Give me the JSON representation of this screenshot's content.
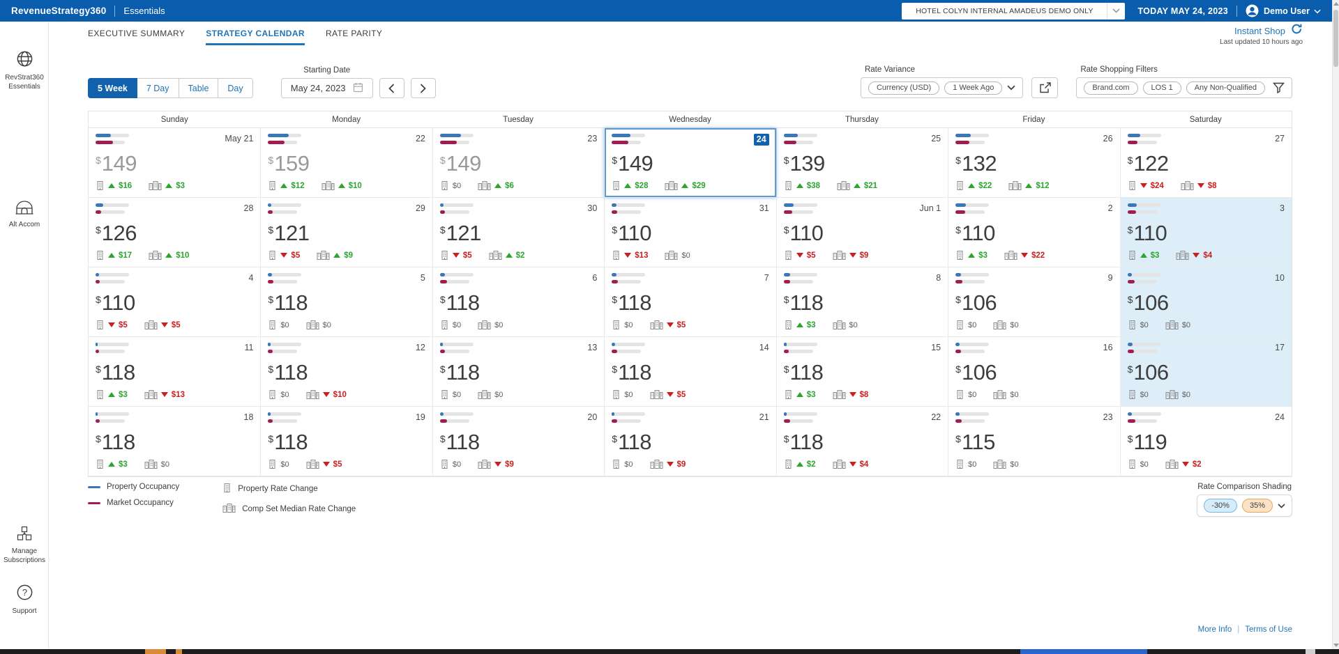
{
  "topbar": {
    "brand": "RevenueStrategy360",
    "product": "Essentials",
    "hotel": "HOTEL COLYN INTERNAL AMADEUS DEMO ONLY",
    "today": "TODAY MAY 24, 2023",
    "user": "Demo User"
  },
  "sidebar": {
    "items": [
      {
        "label": "RevStrat360 Essentials",
        "icon": "globe-icon"
      },
      {
        "label": "Alt Accom",
        "icon": "arch-icon"
      },
      {
        "label": "Manage Subscriptions",
        "icon": "cubes-icon"
      },
      {
        "label": "Support",
        "icon": "question-icon"
      }
    ]
  },
  "tabs": [
    {
      "label": "EXECUTIVE SUMMARY",
      "active": false
    },
    {
      "label": "STRATEGY CALENDAR",
      "active": true
    },
    {
      "label": "RATE PARITY",
      "active": false
    }
  ],
  "instant_shop": {
    "label": "Instant Shop",
    "last_updated": "Last updated 10 hours ago"
  },
  "toolbar": {
    "view_buttons": [
      "5 Week",
      "7 Day",
      "Table",
      "Day"
    ],
    "active_view": "5 Week",
    "starting_date_label": "Starting Date",
    "starting_date": "May 24, 2023",
    "rate_variance_label": "Rate Variance",
    "rate_variance_pills": [
      "Currency (USD)",
      "1 Week Ago"
    ],
    "rate_shopping_label": "Rate Shopping Filters",
    "rate_shopping_pills": [
      "Brand.com",
      "LOS 1",
      "Any Non-Qualified"
    ]
  },
  "calendar": {
    "day_headers": [
      "Sunday",
      "Monday",
      "Tuesday",
      "Wednesday",
      "Thursday",
      "Friday",
      "Saturday"
    ],
    "cells": [
      {
        "d": "May 21",
        "p": "149",
        "past": true,
        "op": 45,
        "om": 52,
        "pc": {
          "dir": "up",
          "v": "$16"
        },
        "cc": {
          "dir": "up",
          "v": "$3"
        }
      },
      {
        "d": "22",
        "p": "159",
        "past": true,
        "op": 62,
        "om": 50,
        "pc": {
          "dir": "up",
          "v": "$12"
        },
        "cc": {
          "dir": "up",
          "v": "$10"
        }
      },
      {
        "d": "23",
        "p": "149",
        "past": true,
        "op": 62,
        "om": 50,
        "pc": {
          "dir": "zero",
          "v": "$0"
        },
        "cc": {
          "dir": "up",
          "v": "$6"
        }
      },
      {
        "d": "24",
        "p": "149",
        "sel": true,
        "op": 55,
        "om": 50,
        "pc": {
          "dir": "up",
          "v": "$28"
        },
        "cc": {
          "dir": "up",
          "v": "$29"
        }
      },
      {
        "d": "25",
        "p": "139",
        "op": 42,
        "om": 38,
        "pc": {
          "dir": "up",
          "v": "$38"
        },
        "cc": {
          "dir": "up",
          "v": "$21"
        }
      },
      {
        "d": "26",
        "p": "132",
        "op": 45,
        "om": 42,
        "pc": {
          "dir": "up",
          "v": "$22"
        },
        "cc": {
          "dir": "up",
          "v": "$12"
        }
      },
      {
        "d": "27",
        "p": "122",
        "op": 38,
        "om": 30,
        "pc": {
          "dir": "down",
          "v": "$24"
        },
        "cc": {
          "dir": "down",
          "v": "$8"
        }
      },
      {
        "d": "28",
        "p": "126",
        "op": 22,
        "om": 16,
        "pc": {
          "dir": "up",
          "v": "$17"
        },
        "cc": {
          "dir": "up",
          "v": "$10"
        }
      },
      {
        "d": "29",
        "p": "121",
        "op": 10,
        "om": 14,
        "pc": {
          "dir": "down",
          "v": "$5"
        },
        "cc": {
          "dir": "up",
          "v": "$9"
        }
      },
      {
        "d": "30",
        "p": "121",
        "op": 10,
        "om": 16,
        "pc": {
          "dir": "down",
          "v": "$5"
        },
        "cc": {
          "dir": "up",
          "v": "$2"
        }
      },
      {
        "d": "31",
        "p": "110",
        "op": 14,
        "om": 16,
        "pc": {
          "dir": "down",
          "v": "$13"
        },
        "cc": {
          "dir": "zero",
          "v": "$0"
        }
      },
      {
        "d": "Jun 1",
        "p": "110",
        "op": 30,
        "om": 25,
        "pc": {
          "dir": "down",
          "v": "$5"
        },
        "cc": {
          "dir": "down",
          "v": "$9"
        }
      },
      {
        "d": "2",
        "p": "110",
        "op": 30,
        "om": 28,
        "pc": {
          "dir": "up",
          "v": "$3"
        },
        "cc": {
          "dir": "down",
          "v": "$22"
        }
      },
      {
        "d": "3",
        "p": "110",
        "sh": true,
        "op": 28,
        "om": 25,
        "pc": {
          "dir": "up",
          "v": "$3"
        },
        "cc": {
          "dir": "down",
          "v": "$4"
        }
      },
      {
        "d": "4",
        "p": "110",
        "op": 10,
        "om": 12,
        "pc": {
          "dir": "down",
          "v": "$5"
        },
        "cc": {
          "dir": "down",
          "v": "$5"
        }
      },
      {
        "d": "5",
        "p": "118",
        "op": 12,
        "om": 16,
        "pc": {
          "dir": "zero",
          "v": "$0"
        },
        "cc": {
          "dir": "zero",
          "v": "$0"
        }
      },
      {
        "d": "6",
        "p": "118",
        "op": 14,
        "om": 20,
        "pc": {
          "dir": "zero",
          "v": "$0"
        },
        "cc": {
          "dir": "zero",
          "v": "$0"
        }
      },
      {
        "d": "7",
        "p": "118",
        "op": 14,
        "om": 18,
        "pc": {
          "dir": "zero",
          "v": "$0"
        },
        "cc": {
          "dir": "down",
          "v": "$5"
        }
      },
      {
        "d": "8",
        "p": "118",
        "op": 20,
        "om": 18,
        "pc": {
          "dir": "up",
          "v": "$3"
        },
        "cc": {
          "dir": "zero",
          "v": "$0"
        }
      },
      {
        "d": "9",
        "p": "106",
        "op": 16,
        "om": 20,
        "pc": {
          "dir": "zero",
          "v": "$0"
        },
        "cc": {
          "dir": "zero",
          "v": "$0"
        }
      },
      {
        "d": "10",
        "p": "106",
        "sh": true,
        "op": 14,
        "om": 22,
        "pc": {
          "dir": "zero",
          "v": "$0"
        },
        "cc": {
          "dir": "zero",
          "v": "$0"
        }
      },
      {
        "d": "11",
        "p": "118",
        "op": 6,
        "om": 10,
        "pc": {
          "dir": "up",
          "v": "$3"
        },
        "cc": {
          "dir": "down",
          "v": "$13"
        }
      },
      {
        "d": "12",
        "p": "118",
        "op": 8,
        "om": 14,
        "pc": {
          "dir": "zero",
          "v": "$0"
        },
        "cc": {
          "dir": "down",
          "v": "$10"
        }
      },
      {
        "d": "13",
        "p": "118",
        "op": 8,
        "om": 16,
        "pc": {
          "dir": "zero",
          "v": "$0"
        },
        "cc": {
          "dir": "zero",
          "v": "$0"
        }
      },
      {
        "d": "14",
        "p": "118",
        "op": 10,
        "om": 16,
        "pc": {
          "dir": "zero",
          "v": "$0"
        },
        "cc": {
          "dir": "down",
          "v": "$5"
        }
      },
      {
        "d": "15",
        "p": "118",
        "op": 8,
        "om": 16,
        "pc": {
          "dir": "up",
          "v": "$3"
        },
        "cc": {
          "dir": "down",
          "v": "$8"
        }
      },
      {
        "d": "16",
        "p": "106",
        "op": 12,
        "om": 16,
        "pc": {
          "dir": "zero",
          "v": "$0"
        },
        "cc": {
          "dir": "zero",
          "v": "$0"
        }
      },
      {
        "d": "17",
        "p": "106",
        "sh": true,
        "op": 16,
        "om": 20,
        "pc": {
          "dir": "zero",
          "v": "$0"
        },
        "cc": {
          "dir": "zero",
          "v": "$0"
        }
      },
      {
        "d": "18",
        "p": "118",
        "op": 6,
        "om": 12,
        "pc": {
          "dir": "up",
          "v": "$3"
        },
        "cc": {
          "dir": "zero",
          "v": "$0"
        }
      },
      {
        "d": "19",
        "p": "118",
        "op": 8,
        "om": 14,
        "pc": {
          "dir": "zero",
          "v": "$0"
        },
        "cc": {
          "dir": "down",
          "v": "$5"
        }
      },
      {
        "d": "20",
        "p": "118",
        "op": 10,
        "om": 20,
        "pc": {
          "dir": "zero",
          "v": "$0"
        },
        "cc": {
          "dir": "down",
          "v": "$9"
        }
      },
      {
        "d": "21",
        "p": "118",
        "op": 8,
        "om": 16,
        "pc": {
          "dir": "zero",
          "v": "$0"
        },
        "cc": {
          "dir": "down",
          "v": "$9"
        }
      },
      {
        "d": "22",
        "p": "118",
        "op": 8,
        "om": 18,
        "pc": {
          "dir": "up",
          "v": "$2"
        },
        "cc": {
          "dir": "down",
          "v": "$4"
        }
      },
      {
        "d": "23",
        "p": "115",
        "op": 12,
        "om": 18,
        "pc": {
          "dir": "zero",
          "v": "$0"
        },
        "cc": {
          "dir": "zero",
          "v": "$0"
        }
      },
      {
        "d": "24",
        "p": "119",
        "op": 14,
        "om": 24,
        "pc": {
          "dir": "zero",
          "v": "$0"
        },
        "cc": {
          "dir": "down",
          "v": "$2"
        }
      }
    ]
  },
  "legend": {
    "property_occupancy": "Property Occupancy",
    "market_occupancy": "Market Occupancy",
    "property_rate_change": "Property Rate Change",
    "comp_set_median_rate_change": "Comp Set Median Rate Change"
  },
  "rate_comparison": {
    "label": "Rate Comparison Shading",
    "low": "-30%",
    "high": "35%"
  },
  "footer": {
    "more_info": "More Info",
    "terms": "Terms of Use"
  },
  "colors": {
    "topbar_blue": "#0a5dad",
    "accent_blue": "#1161ac",
    "link_blue": "#1f74b8",
    "property_bar": "#3a76b8",
    "market_bar": "#a11c52",
    "up_green": "#2ba52e",
    "down_red": "#cc1e1e",
    "weekend_shade": "#ddeef8",
    "shade_low_fill": "#d7ecf9",
    "shade_high_fill": "#fce3c7"
  }
}
